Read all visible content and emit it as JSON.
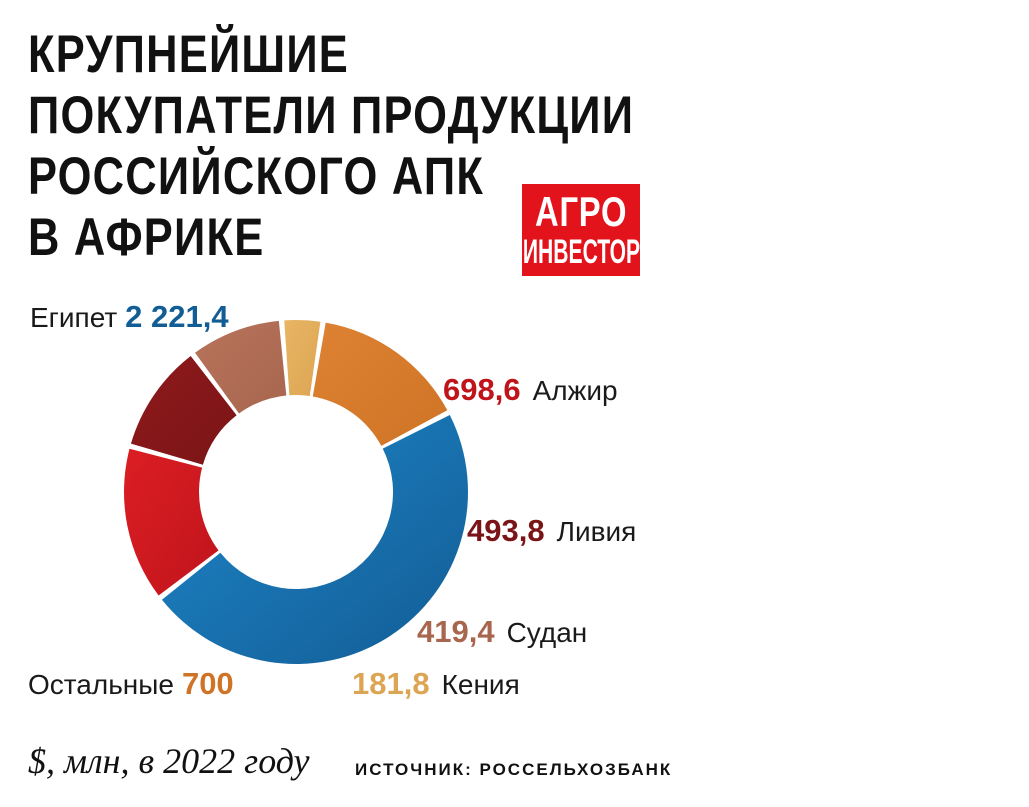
{
  "title_lines": [
    "КРУПНЕЙШИЕ",
    "ПОКУПАТЕЛИ ПРОДУКЦИИ",
    "РОССИЙСКОГО АПК",
    "В АФРИКЕ"
  ],
  "logo": {
    "line1": "АГРО",
    "line2": "ИНВЕСТОР",
    "color": "#e3131c"
  },
  "footer": {
    "unit": "$, млн, в 2022 году",
    "source": "ИСТОЧНИК: РОССЕЛЬХОЗБАНК"
  },
  "chart_data": {
    "type": "pie",
    "donut": true,
    "unit": "$, млн, в 2022 году",
    "slices": [
      {
        "label": "Египет",
        "value": 2221.4,
        "display": "2 221,4",
        "color": "#1f86c9",
        "color_dark": "#125d95"
      },
      {
        "label": "Алжир",
        "value": 698.6,
        "display": "698,6",
        "color": "#db1e24",
        "color_dark": "#c0141b"
      },
      {
        "label": "Ливия",
        "value": 493.8,
        "display": "493,8",
        "color": "#8f1a1c",
        "color_dark": "#7a1416"
      },
      {
        "label": "Судан",
        "value": 419.4,
        "display": "419,4",
        "color": "#b8735a",
        "color_dark": "#a8664f"
      },
      {
        "label": "Кения",
        "value": 181.8,
        "display": "181,8",
        "color": "#e8b564",
        "color_dark": "#dca553"
      },
      {
        "label": "Остальные",
        "value": 700,
        "display": "700",
        "color": "#dd8232",
        "color_dark": "#cf7426"
      }
    ]
  }
}
